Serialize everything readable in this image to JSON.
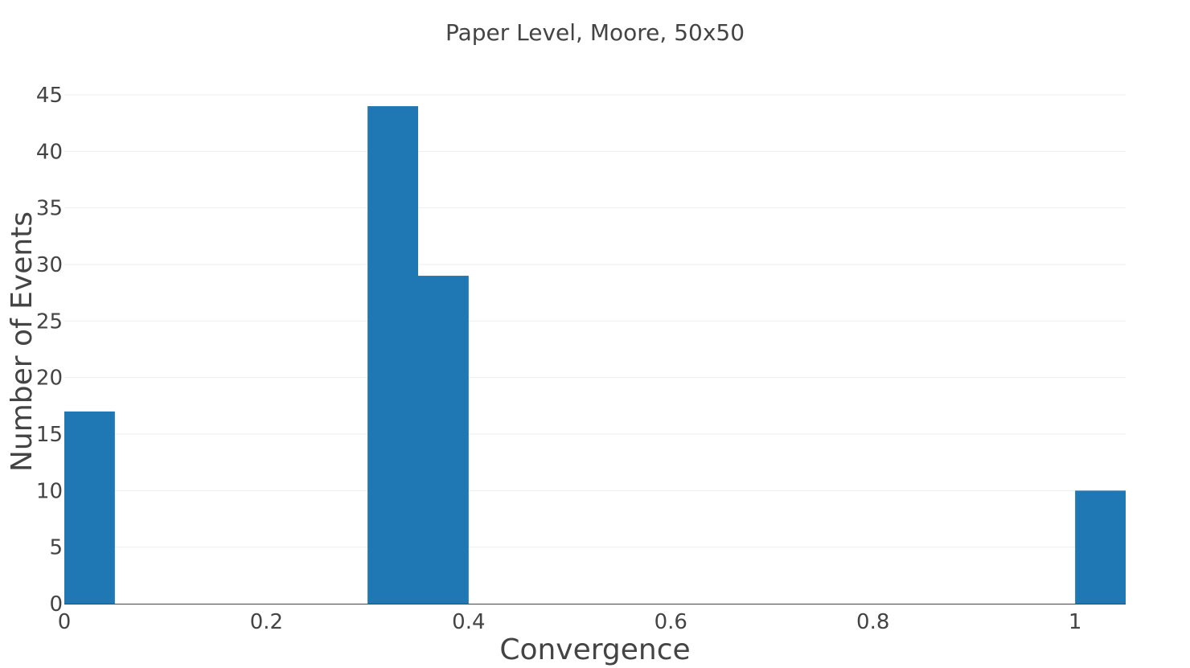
{
  "chart_data": {
    "type": "bar",
    "title": "Paper Level, Moore, 50x50",
    "xlabel": "Convergence",
    "ylabel": "Number of Events",
    "xlim": [
      0,
      1.05
    ],
    "ylim": [
      0,
      45
    ],
    "x_ticks": [
      0,
      0.2,
      0.4,
      0.6,
      0.8,
      1
    ],
    "x_tick_labels": [
      "0",
      "0.2",
      "0.4",
      "0.6",
      "0.8",
      "1"
    ],
    "y_ticks": [
      0,
      5,
      10,
      15,
      20,
      25,
      30,
      35,
      40,
      45
    ],
    "y_tick_labels": [
      "0",
      "5",
      "10",
      "15",
      "20",
      "25",
      "30",
      "35",
      "40",
      "45"
    ],
    "grid": true,
    "bar_color": "#1f77b4",
    "bins": [
      {
        "start": 0,
        "end": 0.05,
        "count": 17
      },
      {
        "start": 0.3,
        "end": 0.35,
        "count": 44
      },
      {
        "start": 0.35,
        "end": 0.4,
        "count": 29
      },
      {
        "start": 1.0,
        "end": 1.05,
        "count": 10
      }
    ]
  }
}
